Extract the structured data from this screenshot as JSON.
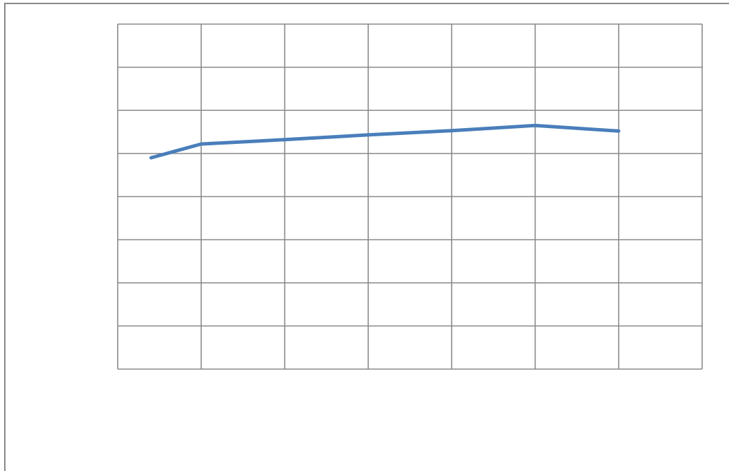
{
  "chart_data": {
    "type": "line",
    "title": "",
    "xlabel": "",
    "ylabel": "",
    "x_cells": 7,
    "y_cells": 8,
    "grid": true,
    "legend": "none",
    "xlim": [
      0,
      7
    ],
    "ylim": [
      0,
      8
    ],
    "series": [
      {
        "color": "#4a7ebb",
        "x": [
          0.4,
          1,
          2,
          3,
          4,
          5,
          6
        ],
        "y": [
          4.9,
          5.22,
          5.32,
          5.43,
          5.53,
          5.65,
          5.52
        ]
      }
    ]
  },
  "colors": {
    "grid": "#888888",
    "frame": "#888888",
    "background": "#ffffff"
  }
}
